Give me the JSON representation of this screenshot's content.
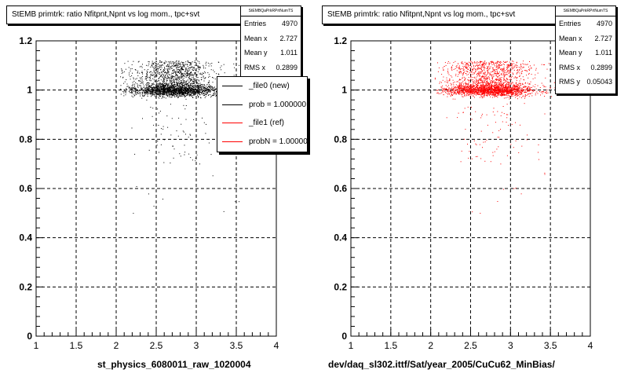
{
  "chart_data": [
    {
      "type": "scatter",
      "title": "StEMB primtrk: ratio Nfitpnt,Npnt vs log mom., tpc+svt",
      "xlabel": "st_physics_6080011_raw_1020004",
      "ylabel": "",
      "xlim": [
        1,
        4
      ],
      "ylim": [
        0,
        1.2
      ],
      "xticks": [
        "1",
        "1.5",
        "2",
        "2.5",
        "3",
        "3.5",
        "4"
      ],
      "yticks": [
        "0",
        "0.2",
        "0.4",
        "0.6",
        "0.8",
        "1",
        "1.2"
      ],
      "grid": true,
      "color": "#000000",
      "stats": {
        "header": "StEMBQaPrkRPrtNumTS",
        "rows": [
          {
            "label": "Entries",
            "value": "4970"
          },
          {
            "label": "Mean x",
            "value": "2.727"
          },
          {
            "label": "Mean y",
            "value": "1.011"
          },
          {
            "label": "RMS x",
            "value": "0.2899"
          }
        ]
      },
      "legend": [
        {
          "label": "_file0 (new)",
          "color": "#000000"
        },
        {
          "label": "prob = 1.000000",
          "color": "#000000"
        },
        {
          "label": "_file1 (ref)",
          "color": "#ff0000"
        },
        {
          "label": "probN = 1.000000",
          "color": "#ff0000"
        }
      ],
      "points": {
        "count": 4970,
        "x_mean": 2.727,
        "x_rms": 0.2899,
        "y_mean": 1.011,
        "y_rms": 0.05043,
        "x_range": [
          2.05,
          3.75
        ],
        "y_range": [
          0.48,
          1.12
        ],
        "y_core": 1.0
      }
    },
    {
      "type": "scatter",
      "title": "StEMB primtrk: ratio Nfitpnt,Npnt vs log mom., tpc+svt",
      "xlabel": "dev/daq_sl302.ittf/Sat/year_2005/CuCu62_MinBias/",
      "ylabel": "",
      "xlim": [
        1,
        4
      ],
      "ylim": [
        0,
        1.2
      ],
      "xticks": [
        "1",
        "1.5",
        "2",
        "2.5",
        "3",
        "3.5",
        "4"
      ],
      "yticks": [
        "0",
        "0.2",
        "0.4",
        "0.6",
        "0.8",
        "1",
        "1.2"
      ],
      "grid": true,
      "color": "#ff0000",
      "stats": {
        "header": "StEMBQaPrkRPrtNumTS",
        "rows": [
          {
            "label": "Entries",
            "value": "4970"
          },
          {
            "label": "Mean x",
            "value": "2.727"
          },
          {
            "label": "Mean y",
            "value": "1.011"
          },
          {
            "label": "RMS x",
            "value": "0.2899"
          },
          {
            "label": "RMS y",
            "value": "0.05043"
          }
        ]
      },
      "points": {
        "count": 4970,
        "x_mean": 2.727,
        "x_rms": 0.2899,
        "y_mean": 1.011,
        "y_rms": 0.05043,
        "x_range": [
          2.05,
          3.75
        ],
        "y_range": [
          0.48,
          1.12
        ],
        "y_core": 1.0
      }
    }
  ]
}
